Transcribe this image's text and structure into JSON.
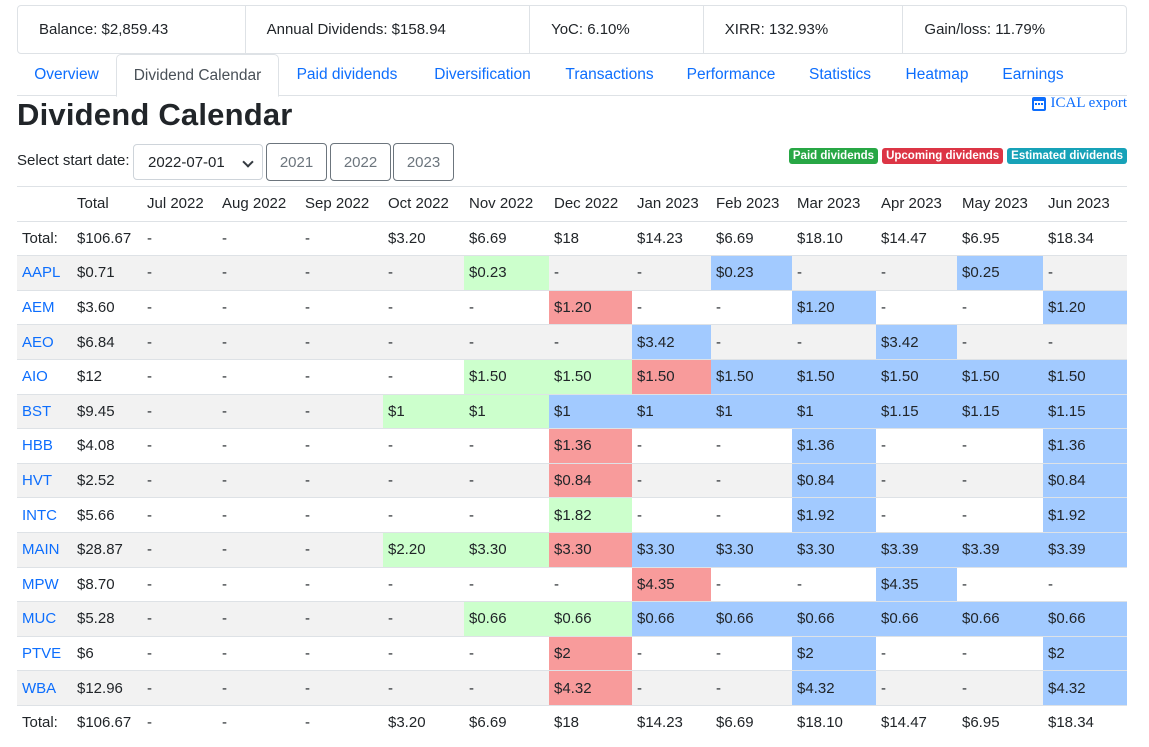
{
  "summary": {
    "balance": "Balance: $2,859.43",
    "annual_dividends": "Annual Dividends: $158.94",
    "yoc": "YoC: 6.10%",
    "xirr": "XIRR: 132.93%",
    "gain_loss": "Gain/loss: 11.79%"
  },
  "tabs": [
    "Overview",
    "Dividend Calendar",
    "Paid dividends",
    "Diversification",
    "Transactions",
    "Performance",
    "Statistics",
    "Heatmap",
    "Earnings"
  ],
  "title": "Dividend Calendar",
  "ical_label": "ICAL export",
  "start_date_label": "Select start date:",
  "start_date_value": "2022-07-01",
  "year_buttons": [
    "2021",
    "2022",
    "2023"
  ],
  "legend": {
    "paid": "Paid dividends",
    "upcoming": "Upcoming dividends",
    "estimated": "Estimated dividends"
  },
  "colors": {
    "paid_badge": "#28a745",
    "upcoming_badge": "#dc3545",
    "estimated_badge": "#17a2b8",
    "paid_cell": "#ccffcc",
    "upcoming_cell": "#f89b9b",
    "estimated_cell": "#a2caff",
    "link": "#0d6efd"
  },
  "table": {
    "headers": [
      "",
      "Total",
      "Jul 2022",
      "Aug 2022",
      "Sep 2022",
      "Oct 2022",
      "Nov 2022",
      "Dec 2022",
      "Jan 2023",
      "Feb 2023",
      "Mar 2023",
      "Apr 2023",
      "May 2023",
      "Jun 2023"
    ],
    "total_row": [
      "Total:",
      "$106.67",
      "-",
      "-",
      "-",
      "$3.20",
      "$6.69",
      "$18",
      "$14.23",
      "$6.69",
      "$18.10",
      "$14.47",
      "$6.95",
      "$18.34"
    ],
    "rows": [
      {
        "ticker": "AAPL",
        "total": "$0.71",
        "cells": [
          [
            "-",
            ""
          ],
          [
            "-",
            ""
          ],
          [
            "-",
            ""
          ],
          [
            "-",
            ""
          ],
          [
            "$0.23",
            "paid"
          ],
          [
            "-",
            ""
          ],
          [
            "-",
            ""
          ],
          [
            "$0.23",
            "estimated"
          ],
          [
            "-",
            ""
          ],
          [
            "-",
            ""
          ],
          [
            "$0.25",
            "estimated"
          ],
          [
            "-",
            ""
          ]
        ]
      },
      {
        "ticker": "AEM",
        "total": "$3.60",
        "cells": [
          [
            "-",
            ""
          ],
          [
            "-",
            ""
          ],
          [
            "-",
            ""
          ],
          [
            "-",
            ""
          ],
          [
            "-",
            ""
          ],
          [
            "$1.20",
            "upcoming"
          ],
          [
            "-",
            ""
          ],
          [
            "-",
            ""
          ],
          [
            "$1.20",
            "estimated"
          ],
          [
            "-",
            ""
          ],
          [
            "-",
            ""
          ],
          [
            "$1.20",
            "estimated"
          ]
        ]
      },
      {
        "ticker": "AEO",
        "total": "$6.84",
        "cells": [
          [
            "-",
            ""
          ],
          [
            "-",
            ""
          ],
          [
            "-",
            ""
          ],
          [
            "-",
            ""
          ],
          [
            "-",
            ""
          ],
          [
            "-",
            ""
          ],
          [
            "$3.42",
            "estimated"
          ],
          [
            "-",
            ""
          ],
          [
            "-",
            ""
          ],
          [
            "$3.42",
            "estimated"
          ],
          [
            "-",
            ""
          ],
          [
            "-",
            ""
          ]
        ]
      },
      {
        "ticker": "AIO",
        "total": "$12",
        "cells": [
          [
            "-",
            ""
          ],
          [
            "-",
            ""
          ],
          [
            "-",
            ""
          ],
          [
            "-",
            ""
          ],
          [
            "$1.50",
            "paid"
          ],
          [
            "$1.50",
            "paid"
          ],
          [
            "$1.50",
            "upcoming"
          ],
          [
            "$1.50",
            "estimated"
          ],
          [
            "$1.50",
            "estimated"
          ],
          [
            "$1.50",
            "estimated"
          ],
          [
            "$1.50",
            "estimated"
          ],
          [
            "$1.50",
            "estimated"
          ]
        ]
      },
      {
        "ticker": "BST",
        "total": "$9.45",
        "cells": [
          [
            "-",
            ""
          ],
          [
            "-",
            ""
          ],
          [
            "-",
            ""
          ],
          [
            "$1",
            "paid"
          ],
          [
            "$1",
            "paid"
          ],
          [
            "$1",
            "estimated"
          ],
          [
            "$1",
            "estimated"
          ],
          [
            "$1",
            "estimated"
          ],
          [
            "$1",
            "estimated"
          ],
          [
            "$1.15",
            "estimated"
          ],
          [
            "$1.15",
            "estimated"
          ],
          [
            "$1.15",
            "estimated"
          ]
        ]
      },
      {
        "ticker": "HBB",
        "total": "$4.08",
        "cells": [
          [
            "-",
            ""
          ],
          [
            "-",
            ""
          ],
          [
            "-",
            ""
          ],
          [
            "-",
            ""
          ],
          [
            "-",
            ""
          ],
          [
            "$1.36",
            "upcoming"
          ],
          [
            "-",
            ""
          ],
          [
            "-",
            ""
          ],
          [
            "$1.36",
            "estimated"
          ],
          [
            "-",
            ""
          ],
          [
            "-",
            ""
          ],
          [
            "$1.36",
            "estimated"
          ]
        ]
      },
      {
        "ticker": "HVT",
        "total": "$2.52",
        "cells": [
          [
            "-",
            ""
          ],
          [
            "-",
            ""
          ],
          [
            "-",
            ""
          ],
          [
            "-",
            ""
          ],
          [
            "-",
            ""
          ],
          [
            "$0.84",
            "upcoming"
          ],
          [
            "-",
            ""
          ],
          [
            "-",
            ""
          ],
          [
            "$0.84",
            "estimated"
          ],
          [
            "-",
            ""
          ],
          [
            "-",
            ""
          ],
          [
            "$0.84",
            "estimated"
          ]
        ]
      },
      {
        "ticker": "INTC",
        "total": "$5.66",
        "cells": [
          [
            "-",
            ""
          ],
          [
            "-",
            ""
          ],
          [
            "-",
            ""
          ],
          [
            "-",
            ""
          ],
          [
            "-",
            ""
          ],
          [
            "$1.82",
            "paid"
          ],
          [
            "-",
            ""
          ],
          [
            "-",
            ""
          ],
          [
            "$1.92",
            "estimated"
          ],
          [
            "-",
            ""
          ],
          [
            "-",
            ""
          ],
          [
            "$1.92",
            "estimated"
          ]
        ]
      },
      {
        "ticker": "MAIN",
        "total": "$28.87",
        "cells": [
          [
            "-",
            ""
          ],
          [
            "-",
            ""
          ],
          [
            "-",
            ""
          ],
          [
            "$2.20",
            "paid"
          ],
          [
            "$3.30",
            "paid"
          ],
          [
            "$3.30",
            "upcoming"
          ],
          [
            "$3.30",
            "estimated"
          ],
          [
            "$3.30",
            "estimated"
          ],
          [
            "$3.30",
            "estimated"
          ],
          [
            "$3.39",
            "estimated"
          ],
          [
            "$3.39",
            "estimated"
          ],
          [
            "$3.39",
            "estimated"
          ]
        ]
      },
      {
        "ticker": "MPW",
        "total": "$8.70",
        "cells": [
          [
            "-",
            ""
          ],
          [
            "-",
            ""
          ],
          [
            "-",
            ""
          ],
          [
            "-",
            ""
          ],
          [
            "-",
            ""
          ],
          [
            "-",
            ""
          ],
          [
            "$4.35",
            "upcoming"
          ],
          [
            "-",
            ""
          ],
          [
            "-",
            ""
          ],
          [
            "$4.35",
            "estimated"
          ],
          [
            "-",
            ""
          ],
          [
            "-",
            ""
          ]
        ]
      },
      {
        "ticker": "MUC",
        "total": "$5.28",
        "cells": [
          [
            "-",
            ""
          ],
          [
            "-",
            ""
          ],
          [
            "-",
            ""
          ],
          [
            "-",
            ""
          ],
          [
            "$0.66",
            "paid"
          ],
          [
            "$0.66",
            "paid"
          ],
          [
            "$0.66",
            "estimated"
          ],
          [
            "$0.66",
            "estimated"
          ],
          [
            "$0.66",
            "estimated"
          ],
          [
            "$0.66",
            "estimated"
          ],
          [
            "$0.66",
            "estimated"
          ],
          [
            "$0.66",
            "estimated"
          ]
        ]
      },
      {
        "ticker": "PTVE",
        "total": "$6",
        "cells": [
          [
            "-",
            ""
          ],
          [
            "-",
            ""
          ],
          [
            "-",
            ""
          ],
          [
            "-",
            ""
          ],
          [
            "-",
            ""
          ],
          [
            "$2",
            "upcoming"
          ],
          [
            "-",
            ""
          ],
          [
            "-",
            ""
          ],
          [
            "$2",
            "estimated"
          ],
          [
            "-",
            ""
          ],
          [
            "-",
            ""
          ],
          [
            "$2",
            "estimated"
          ]
        ]
      },
      {
        "ticker": "WBA",
        "total": "$12.96",
        "cells": [
          [
            "-",
            ""
          ],
          [
            "-",
            ""
          ],
          [
            "-",
            ""
          ],
          [
            "-",
            ""
          ],
          [
            "-",
            ""
          ],
          [
            "$4.32",
            "upcoming"
          ],
          [
            "-",
            ""
          ],
          [
            "-",
            ""
          ],
          [
            "$4.32",
            "estimated"
          ],
          [
            "-",
            ""
          ],
          [
            "-",
            ""
          ],
          [
            "$4.32",
            "estimated"
          ]
        ]
      }
    ]
  }
}
